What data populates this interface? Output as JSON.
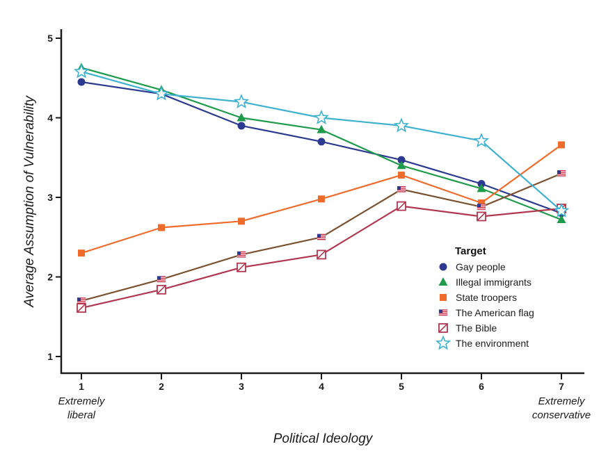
{
  "chart_data": {
    "type": "line",
    "title": "",
    "xlabel": "Political Ideology",
    "ylabel": "Average Assumption of Vulnerability",
    "x": [
      1,
      2,
      3,
      4,
      5,
      6,
      7
    ],
    "x_tick_labels": [
      "1",
      "2",
      "3",
      "4",
      "5",
      "6",
      "7"
    ],
    "x_end_labels": {
      "left": [
        "Extremely",
        "liberal"
      ],
      "right": [
        "Extremely",
        "conservative"
      ]
    },
    "xlim": [
      0.85,
      7.25
    ],
    "ylim": [
      1,
      5
    ],
    "y_ticks": [
      1,
      2,
      3,
      4,
      5
    ],
    "grid": false,
    "legend": {
      "title": "Target",
      "position": "center-right"
    },
    "series": [
      {
        "name": "Gay people",
        "marker": "circle",
        "color": "#2b3990",
        "values": [
          4.45,
          4.3,
          3.9,
          3.7,
          3.47,
          3.17,
          2.8
        ]
      },
      {
        "name": "Illegal immigrants",
        "marker": "triangle",
        "color": "#1e9a4b",
        "values": [
          4.63,
          4.35,
          4.0,
          3.85,
          3.4,
          3.11,
          2.72
        ]
      },
      {
        "name": "State troopers",
        "marker": "square",
        "color": "#ee6b2b",
        "values": [
          2.3,
          2.62,
          2.7,
          2.98,
          3.28,
          2.93,
          3.66
        ]
      },
      {
        "name": "The American flag",
        "marker": "flag",
        "color": "#7a5230",
        "values": [
          1.7,
          1.97,
          2.28,
          2.5,
          3.1,
          2.88,
          3.3
        ]
      },
      {
        "name": "The Bible",
        "marker": "crossed-square",
        "color": "#b0374f",
        "values": [
          1.61,
          1.84,
          2.12,
          2.28,
          2.89,
          2.76,
          2.86
        ]
      },
      {
        "name": "The environment",
        "marker": "star",
        "color": "#3eb1cf",
        "values": [
          4.58,
          4.3,
          4.2,
          4.0,
          3.9,
          3.71,
          2.83
        ]
      }
    ]
  }
}
